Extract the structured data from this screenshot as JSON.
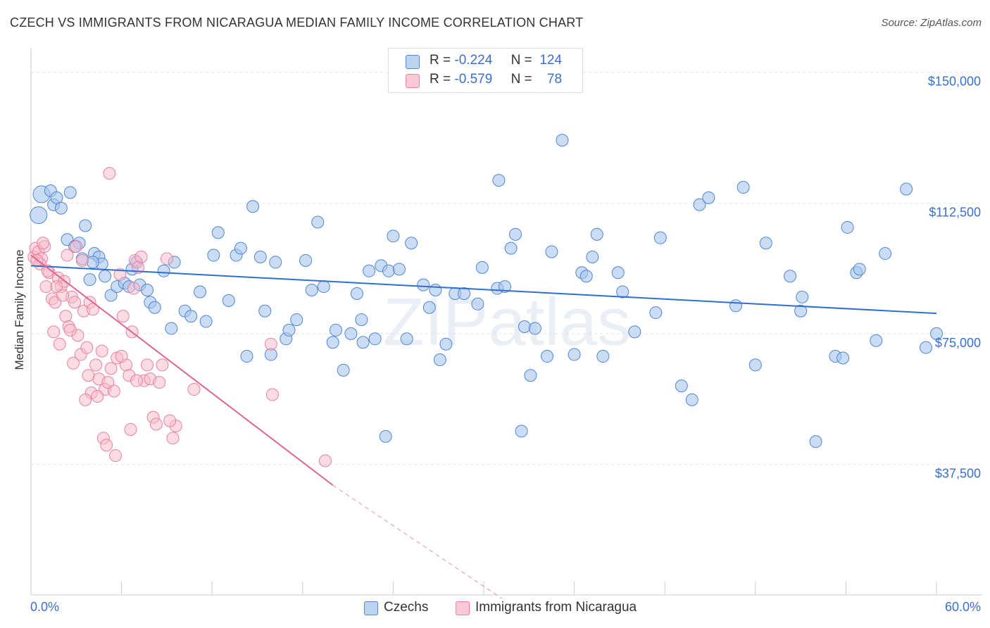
{
  "title": "CZECH VS IMMIGRANTS FROM NICARAGUA MEDIAN FAMILY INCOME CORRELATION CHART",
  "source": "Source: ZipAtlas.com",
  "watermark": "ZIPatlas",
  "legend": {
    "rows": [
      {
        "r_label": "R =",
        "r_value": "-0.224",
        "n_label": "N =",
        "n_value": "124"
      },
      {
        "r_label": "R =",
        "r_value": "-0.579",
        "n_label": "N =",
        "n_value": "78"
      }
    ]
  },
  "bottom_legend": [
    "Czechs",
    "Immigrants from Nicaragua"
  ],
  "colors": {
    "czech_fill": "#a9c6ef",
    "czech_stroke": "#4f86d6",
    "czech_line": "#2f6fd0",
    "nic_fill": "#f7b9cc",
    "nic_stroke": "#e8819f",
    "nic_line": "#e0658d",
    "tick_text": "#3a6fcf",
    "grid": "#e2e2e2"
  },
  "chart_data": {
    "type": "scatter",
    "title": "CZECH VS IMMIGRANTS FROM NICARAGUA MEDIAN FAMILY INCOME CORRELATION CHART",
    "xlabel": "",
    "ylabel": "Median Family Income",
    "xlim": [
      0,
      60
    ],
    "ylim": [
      0,
      155000
    ],
    "x_tick_labels": [
      "0.0%",
      "60.0%"
    ],
    "y_ticks": [
      37500,
      75000,
      112500,
      150000
    ],
    "y_tick_labels": [
      "$37,500",
      "$75,000",
      "$112,500",
      "$150,000"
    ],
    "series": [
      {
        "name": "Czechs",
        "r": -0.224,
        "n": 124,
        "trend": {
          "x0": 0,
          "y0": 94500,
          "x1": 60,
          "y1": 80800
        },
        "points": [
          [
            0.5,
            109000
          ],
          [
            0.7,
            115000
          ],
          [
            1.5,
            112000
          ],
          [
            1.3,
            116000
          ],
          [
            2.6,
            115500
          ],
          [
            1.7,
            114000
          ],
          [
            2.0,
            111000
          ],
          [
            2.4,
            102000
          ],
          [
            3.2,
            101000
          ],
          [
            3.6,
            106000
          ],
          [
            3.4,
            96500
          ],
          [
            2.9,
            100000
          ],
          [
            4.2,
            98000
          ],
          [
            4.5,
            97000
          ],
          [
            4.7,
            95000
          ],
          [
            4.1,
            95500
          ],
          [
            3.9,
            90500
          ],
          [
            4.9,
            91500
          ],
          [
            5.3,
            86000
          ],
          [
            5.7,
            88500
          ],
          [
            6.2,
            89500
          ],
          [
            6.5,
            88500
          ],
          [
            6.7,
            93500
          ],
          [
            7.0,
            95500
          ],
          [
            7.2,
            89000
          ],
          [
            7.7,
            87500
          ],
          [
            7.9,
            84000
          ],
          [
            8.2,
            82500
          ],
          [
            8.8,
            93000
          ],
          [
            9.5,
            95500
          ],
          [
            9.3,
            76500
          ],
          [
            10.2,
            81500
          ],
          [
            10.6,
            80000
          ],
          [
            11.2,
            87000
          ],
          [
            11.6,
            78500
          ],
          [
            12.1,
            97500
          ],
          [
            12.4,
            104000
          ],
          [
            13.1,
            84500
          ],
          [
            13.6,
            97500
          ],
          [
            13.9,
            99500
          ],
          [
            14.3,
            68500
          ],
          [
            14.7,
            111500
          ],
          [
            15.2,
            97000
          ],
          [
            15.5,
            81500
          ],
          [
            15.9,
            69000
          ],
          [
            16.2,
            95500
          ],
          [
            16.9,
            73500
          ],
          [
            17.1,
            76000
          ],
          [
            17.6,
            79000
          ],
          [
            18.2,
            96000
          ],
          [
            18.6,
            87500
          ],
          [
            19.0,
            107000
          ],
          [
            19.4,
            88500
          ],
          [
            20.0,
            72500
          ],
          [
            20.2,
            76000
          ],
          [
            20.7,
            64500
          ],
          [
            21.2,
            75000
          ],
          [
            21.6,
            86500
          ],
          [
            21.9,
            79000
          ],
          [
            22.4,
            93000
          ],
          [
            22.8,
            73500
          ],
          [
            23.2,
            94500
          ],
          [
            23.7,
            93000
          ],
          [
            24.0,
            103000
          ],
          [
            24.4,
            93500
          ],
          [
            24.9,
            73500
          ],
          [
            25.2,
            101000
          ],
          [
            26.0,
            89000
          ],
          [
            26.4,
            82500
          ],
          [
            26.8,
            87500
          ],
          [
            27.1,
            67500
          ],
          [
            27.5,
            72000
          ],
          [
            28.1,
            86500
          ],
          [
            28.7,
            86500
          ],
          [
            29.6,
            83500
          ],
          [
            29.9,
            94000
          ],
          [
            31.0,
            119000
          ],
          [
            30.9,
            88000
          ],
          [
            31.4,
            88500
          ],
          [
            31.8,
            99500
          ],
          [
            32.1,
            103500
          ],
          [
            32.7,
            77000
          ],
          [
            33.1,
            63000
          ],
          [
            33.4,
            76500
          ],
          [
            34.2,
            68500
          ],
          [
            34.5,
            98500
          ],
          [
            35.2,
            130500
          ],
          [
            36.0,
            69000
          ],
          [
            36.5,
            92500
          ],
          [
            36.8,
            91500
          ],
          [
            37.2,
            97000
          ],
          [
            37.5,
            103500
          ],
          [
            37.9,
            68500
          ],
          [
            38.9,
            92500
          ],
          [
            39.2,
            87000
          ],
          [
            41.4,
            81000
          ],
          [
            41.7,
            102500
          ],
          [
            43.1,
            60000
          ],
          [
            43.8,
            56000
          ],
          [
            44.3,
            112000
          ],
          [
            44.9,
            114000
          ],
          [
            46.7,
            83000
          ],
          [
            47.2,
            117000
          ],
          [
            48.7,
            101000
          ],
          [
            50.3,
            91500
          ],
          [
            51.0,
            81500
          ],
          [
            51.1,
            85500
          ],
          [
            53.3,
            68500
          ],
          [
            53.8,
            68000
          ],
          [
            54.1,
            105500
          ],
          [
            54.7,
            92500
          ],
          [
            54.9,
            93500
          ],
          [
            56.6,
            98000
          ],
          [
            59.3,
            71000
          ],
          [
            60.0,
            75000
          ],
          [
            48.0,
            66000
          ],
          [
            56.0,
            73000
          ],
          [
            58.0,
            116500
          ],
          [
            52.0,
            44000
          ],
          [
            32.5,
            47000
          ],
          [
            23.5,
            45500
          ],
          [
            40.0,
            75500
          ],
          [
            22.0,
            72500
          ]
        ]
      },
      {
        "name": "Immigrants from Nicaragua",
        "r": -0.579,
        "n": 78,
        "trend": {
          "x0": 0,
          "y0": 97500,
          "x1": 20,
          "y1": 31500,
          "dash_x1": 31.2,
          "dash_y1": -5000
        },
        "points": [
          [
            0.2,
            97000
          ],
          [
            0.3,
            99500
          ],
          [
            0.5,
            98500
          ],
          [
            0.7,
            96500
          ],
          [
            0.9,
            100000
          ],
          [
            0.6,
            95000
          ],
          [
            1.0,
            88500
          ],
          [
            1.2,
            92500
          ],
          [
            1.4,
            85000
          ],
          [
            1.6,
            84000
          ],
          [
            1.8,
            91000
          ],
          [
            2.0,
            88500
          ],
          [
            2.2,
            90000
          ],
          [
            1.5,
            75500
          ],
          [
            1.9,
            72000
          ],
          [
            2.3,
            80000
          ],
          [
            2.5,
            77000
          ],
          [
            2.7,
            85500
          ],
          [
            2.9,
            84000
          ],
          [
            3.1,
            74500
          ],
          [
            3.3,
            69000
          ],
          [
            3.5,
            81500
          ],
          [
            3.7,
            71000
          ],
          [
            3.9,
            84000
          ],
          [
            4.1,
            82000
          ],
          [
            4.3,
            66000
          ],
          [
            4.5,
            62000
          ],
          [
            4.7,
            70000
          ],
          [
            4.9,
            59000
          ],
          [
            5.1,
            61000
          ],
          [
            5.3,
            65000
          ],
          [
            5.5,
            58500
          ],
          [
            5.7,
            68000
          ],
          [
            5.9,
            92000
          ],
          [
            6.1,
            80000
          ],
          [
            6.3,
            66000
          ],
          [
            6.5,
            63000
          ],
          [
            6.7,
            75500
          ],
          [
            6.9,
            96000
          ],
          [
            7.1,
            94000
          ],
          [
            7.3,
            97000
          ],
          [
            7.5,
            61500
          ],
          [
            7.7,
            66000
          ],
          [
            7.9,
            62000
          ],
          [
            8.1,
            51000
          ],
          [
            8.3,
            49000
          ],
          [
            8.5,
            61000
          ],
          [
            8.7,
            66000
          ],
          [
            9.0,
            96500
          ],
          [
            9.4,
            45000
          ],
          [
            9.6,
            48500
          ],
          [
            10.8,
            59000
          ],
          [
            15.9,
            72000
          ],
          [
            16.0,
            57500
          ],
          [
            19.5,
            38500
          ],
          [
            5.2,
            121000
          ],
          [
            4.0,
            58000
          ],
          [
            3.0,
            100000
          ],
          [
            2.4,
            97500
          ],
          [
            6.0,
            68500
          ],
          [
            6.8,
            88000
          ],
          [
            4.8,
            45000
          ],
          [
            5.6,
            40000
          ],
          [
            3.6,
            56000
          ],
          [
            1.7,
            88500
          ],
          [
            2.1,
            86000
          ],
          [
            0.4,
            96000
          ],
          [
            0.8,
            101000
          ],
          [
            1.1,
            93000
          ],
          [
            5.0,
            43000
          ],
          [
            3.4,
            96000
          ],
          [
            6.6,
            47500
          ],
          [
            7.0,
            61500
          ],
          [
            4.4,
            57000
          ],
          [
            2.6,
            76000
          ],
          [
            2.8,
            66500
          ],
          [
            9.2,
            50000
          ],
          [
            3.8,
            63000
          ]
        ]
      }
    ]
  }
}
